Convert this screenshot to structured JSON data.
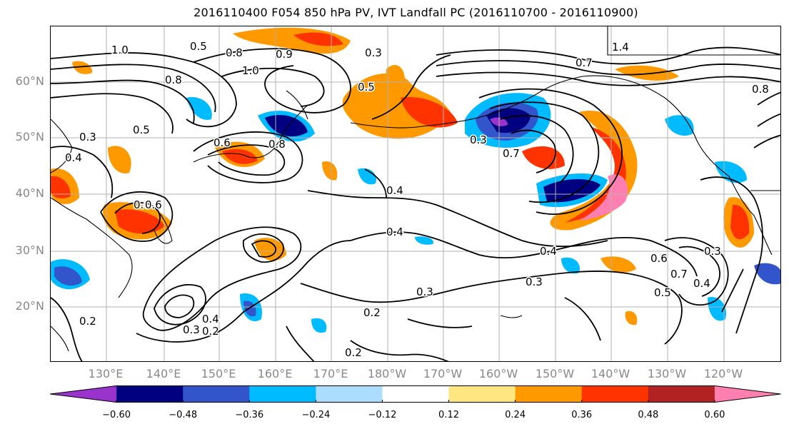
{
  "title": "2016110400 F054 850 hPa PV, IVT Landfall PC (2016110700 - 2016110900)",
  "lat_labels": [
    "60°N",
    "50°N",
    "40°N",
    "30°N",
    "20°N"
  ],
  "lon_labels": [
    "130°E",
    "140°E",
    "150°E",
    "160°E",
    "170°E",
    "180°W",
    "170°W",
    "160°W",
    "150°W",
    "140°W",
    "130°W",
    "120°W"
  ],
  "colorbar": {
    "colors": [
      "#9933cc",
      "#000080",
      "#3355cc",
      "#00bbff",
      "#aaddff",
      "#ffffff",
      "#ffe680",
      "#ff9900",
      "#ff3300",
      "#b22222",
      "#ff80b0"
    ],
    "tick_labels": [
      "−0.60",
      "−0.48",
      "−0.36",
      "−0.24",
      "−0.12",
      "0.12",
      "0.24",
      "0.36",
      "0.48",
      "0.60"
    ]
  },
  "contour_labels": [
    "1.0",
    "0.5",
    "0.8",
    "1.0",
    "0.8",
    "0.9",
    "0.5",
    "0.3",
    "1.4",
    "0.7",
    "0.8",
    "0.5",
    "0.4",
    "0.6",
    "0.8",
    "0.6",
    "0.6",
    "0.7",
    "0.4",
    "0.3",
    "0.4",
    "0.4",
    "0.3",
    "0.2",
    "0.2",
    "0.2",
    "0.3",
    "0.4",
    "0.6",
    "0.7",
    "0.5",
    "0.4",
    "0.2",
    "0.3",
    "0.3",
    "0.3"
  ]
}
